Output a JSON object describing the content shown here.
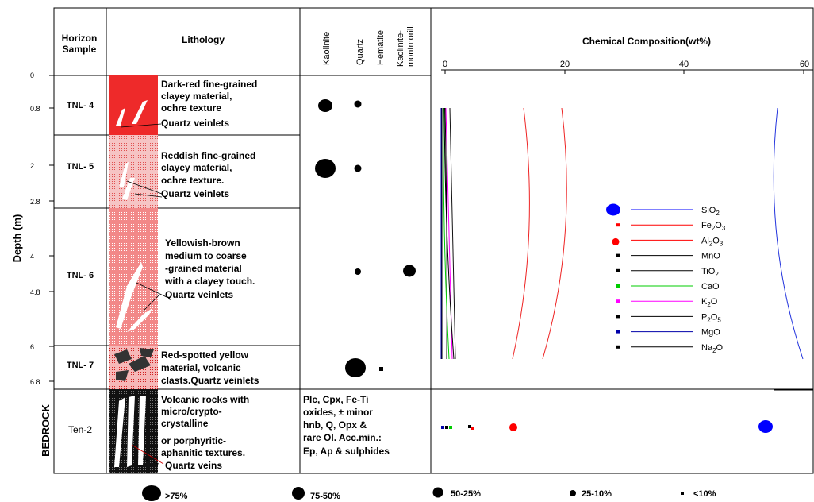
{
  "headers": {
    "horizon_line1": "Horizon",
    "horizon_line2": "Sample",
    "lithology": "Lithology",
    "chemical_composition": "Chemical Composition(wt%)",
    "minerals": [
      "Kaolinite",
      "Quartz",
      "Hematite",
      "Kaolinite-",
      "montmorill."
    ]
  },
  "depth_axis": {
    "label": "Depth (m)",
    "ticks": [
      "0",
      "0.8",
      "2",
      "2.8",
      "4",
      "4.8",
      "6",
      "6.8"
    ],
    "bedrock_label": "BEDROCK"
  },
  "samples": [
    {
      "name": "TNL- 4",
      "description": [
        "Dark-red fine-grained",
        "clayey material,",
        "ochre texture",
        "Quartz veinlets"
      ],
      "color": "#ee2a2a"
    },
    {
      "name": "TNL- 5",
      "description": [
        "Reddish fine-grained",
        "clayey material,",
        "ochre texture.",
        "Quartz veinlets"
      ],
      "color": "#f4b0b0"
    },
    {
      "name": "TNL- 6",
      "description": [
        "Yellowish-brown",
        "medium to coarse",
        "-grained material",
        "with a clayey touch.",
        "Quartz veinlets"
      ],
      "color": "#f08080"
    },
    {
      "name": "TNL- 7",
      "description": [
        "Red-spotted yellow",
        "material, volcanic",
        "clasts.Quartz veinlets"
      ],
      "color": "#f4a4a4"
    }
  ],
  "bedrock": {
    "name": "Ten-2",
    "description": [
      "Volcanic rocks with",
      "micro/crypto-",
      "crystalline",
      "or porphyritic-",
      "aphanitic textures.",
      "Quartz veins"
    ],
    "mineralogy": [
      "Plc, Cpx, Fe-Ti",
      "oxides, ± minor",
      "hnb, Q, Opx &",
      "rare Ol. Acc.min.:",
      "Ep, Ap & sulphides"
    ]
  },
  "chem_axis": {
    "ticks": [
      "0",
      "20",
      "40",
      "60"
    ],
    "min": 0,
    "max": 60
  },
  "chem_legend": [
    {
      "base": "SiO",
      "sub": "2",
      "rest": "",
      "color": "#0000ff"
    },
    {
      "base": "Fe",
      "sub": "2",
      "rest": "O",
      "sub2": "3",
      "color": "#ff0000"
    },
    {
      "base": "Al",
      "sub": "2",
      "rest": "O",
      "sub2": "3",
      "color": "#ff0000"
    },
    {
      "base": "MnO",
      "sub": "",
      "rest": "",
      "color": "#000000"
    },
    {
      "base": "TiO",
      "sub": "2",
      "rest": "",
      "color": "#000000"
    },
    {
      "base": "CaO",
      "sub": "",
      "rest": "",
      "color": "#00cc00"
    },
    {
      "base": "K",
      "sub": "2",
      "rest": "O",
      "color": "#ff00ff"
    },
    {
      "base": "P",
      "sub": "2",
      "rest": "O",
      "sub2": "5",
      "color": "#000000"
    },
    {
      "base": "MgO",
      "sub": "",
      "rest": "",
      "color": "#0000aa"
    },
    {
      "base": "Na",
      "sub": "2",
      "rest": "O",
      "color": "#000000"
    }
  ],
  "abundance_legend": [
    ">75%",
    "75-50%",
    "50-25%",
    "25-10%",
    "<10%"
  ]
}
